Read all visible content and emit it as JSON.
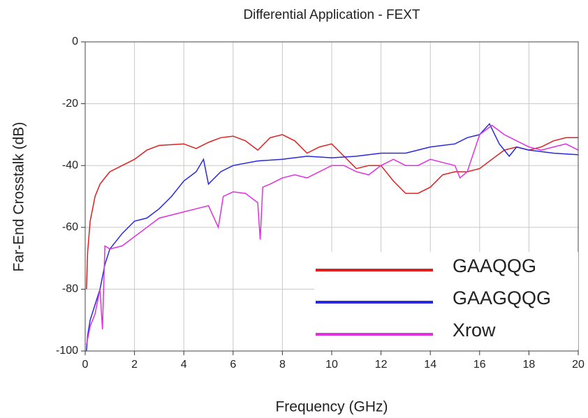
{
  "chart_data": {
    "type": "line",
    "title": "Differential Application - FEXT",
    "x_label": "Frequency (GHz)",
    "y_label": "Far-End Crosstalk (dB)",
    "xlim": [
      0,
      20
    ],
    "ylim": [
      -100,
      0
    ],
    "xticks": [
      0,
      2,
      4,
      6,
      8,
      10,
      12,
      14,
      16,
      18,
      20
    ],
    "yticks": [
      -100,
      -80,
      -60,
      -40,
      -20,
      0
    ],
    "grid": true,
    "legend": "lower right",
    "series": [
      {
        "name": "GAAQQG",
        "color": "#e02020",
        "x": [
          0.05,
          0.1,
          0.2,
          0.4,
          0.6,
          0.8,
          1.0,
          1.5,
          2,
          2.5,
          3,
          4,
          4.5,
          5,
          5.5,
          6,
          6.5,
          7,
          7.5,
          8,
          8.5,
          9,
          9.5,
          10,
          10.5,
          11,
          11.5,
          12,
          12.5,
          13,
          13.5,
          14,
          14.5,
          15,
          15.5,
          16,
          16.5,
          17,
          17.5,
          18,
          18.5,
          19,
          19.5,
          20
        ],
        "values": [
          -80,
          -68,
          -58,
          -50,
          -46,
          -44,
          -42,
          -40,
          -38,
          -35,
          -33.5,
          -33,
          -34.5,
          -32.5,
          -31,
          -30.5,
          -32,
          -35,
          -31,
          -30,
          -32,
          -36,
          -34,
          -33,
          -37,
          -41,
          -40,
          -40,
          -45,
          -49,
          -49,
          -47,
          -43,
          -42,
          -42,
          -41,
          -38,
          -35,
          -34,
          -35,
          -34,
          -32,
          -31,
          -31
        ]
      },
      {
        "name": "GAAGQQG",
        "color": "#2828e0",
        "x": [
          0.05,
          0.1,
          0.2,
          0.4,
          0.6,
          0.8,
          1.0,
          1.5,
          2,
          2.5,
          3,
          3.5,
          4,
          4.5,
          4.8,
          5,
          5.5,
          6,
          7,
          8,
          9,
          10,
          11,
          12,
          13,
          14,
          15,
          15.5,
          16,
          16.4,
          16.8,
          17.2,
          17.5,
          18,
          19,
          20
        ],
        "values": [
          -100,
          -95,
          -90,
          -85,
          -80,
          -72,
          -67,
          -62,
          -58,
          -57,
          -54,
          -50,
          -45,
          -42,
          -38,
          -46,
          -42,
          -40,
          -38.5,
          -38,
          -37,
          -37.5,
          -37,
          -36,
          -36,
          -34,
          -33,
          -31,
          -30,
          -26.5,
          -33,
          -37,
          -34,
          -35,
          -36,
          -36.5
        ]
      },
      {
        "name": "Xrow",
        "color": "#e030e0",
        "x": [
          0.05,
          0.2,
          0.4,
          0.6,
          0.7,
          0.8,
          1.0,
          1.5,
          2,
          2.5,
          3,
          3.5,
          4,
          4.5,
          5,
          5.4,
          5.6,
          6,
          6.5,
          7,
          7.1,
          7.2,
          7.5,
          8,
          8.5,
          9,
          9.5,
          10,
          10.5,
          11,
          11.5,
          12,
          12.5,
          13,
          13.5,
          14,
          14.5,
          15,
          15.2,
          15.5,
          16,
          16.5,
          17,
          17.5,
          18,
          18.5,
          19,
          19.5,
          20
        ],
        "values": [
          -98,
          -92,
          -88,
          -80,
          -93,
          -66,
          -67,
          -66,
          -63,
          -60,
          -57,
          -56,
          -55,
          -54,
          -53,
          -60,
          -50,
          -48.5,
          -49,
          -52,
          -64,
          -47,
          -46,
          -44,
          -43,
          -44,
          -42,
          -40,
          -40,
          -42,
          -43,
          -40,
          -38,
          -40,
          -40,
          -38,
          -39,
          -40,
          -44,
          -42,
          -30,
          -27,
          -30,
          -32,
          -34,
          -35,
          -34,
          -33,
          -35
        ]
      }
    ]
  }
}
